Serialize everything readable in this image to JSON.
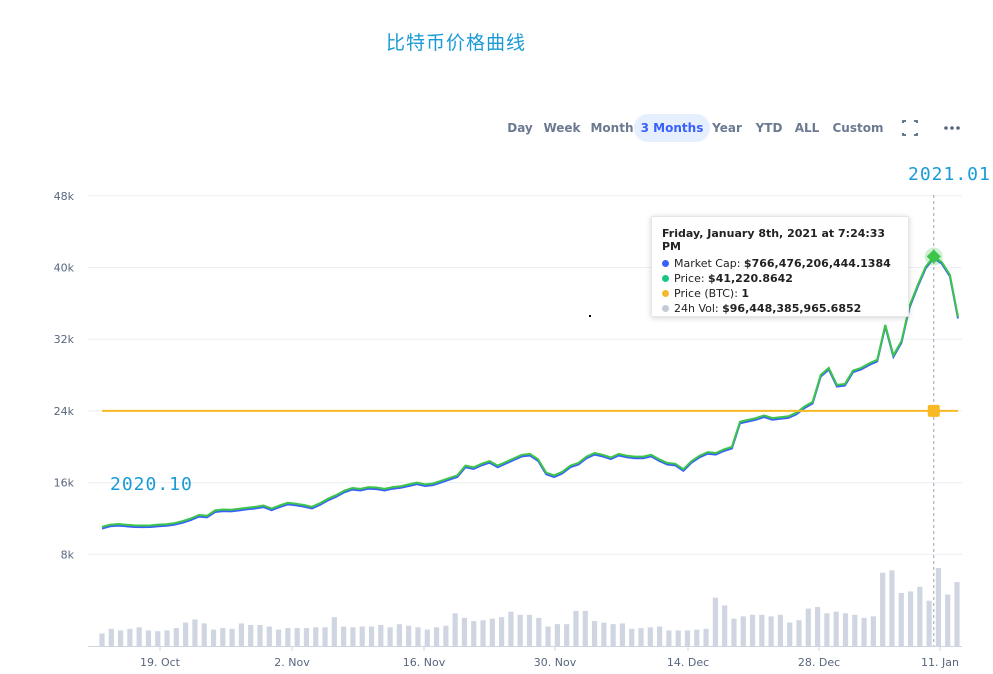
{
  "title": "比特币价格曲线",
  "range_buttons": [
    {
      "label": "Day",
      "active": false
    },
    {
      "label": "Week",
      "active": false
    },
    {
      "label": "Month",
      "active": false
    },
    {
      "label": "3 Months",
      "active": true
    },
    {
      "label": "Year",
      "active": false
    },
    {
      "label": "YTD",
      "active": false
    },
    {
      "label": "ALL",
      "active": false
    },
    {
      "label": "Custom",
      "active": false
    }
  ],
  "icons": {
    "fullscreen": "fullscreen-icon",
    "more": "more-options-icon"
  },
  "annotations": {
    "start": "2020.10",
    "end": "2021.01"
  },
  "tooltip": {
    "header": "Friday, January 8th, 2021 at 7:24:33 PM",
    "rows": [
      {
        "label": "Market Cap:",
        "value": "$766,476,206,444.1384",
        "color": "#3861fb"
      },
      {
        "label": "Price:",
        "value": "$41,220.8642",
        "color": "#16c784"
      },
      {
        "label": "Price (BTC):",
        "value": "1",
        "color": "#f3ba2f"
      },
      {
        "label": "24h Vol:",
        "value": "$96,448,385,965.6852",
        "color": "#c2cad6"
      }
    ]
  },
  "colors": {
    "price": "#3dc44a",
    "market_cap": "#3861fb",
    "price_btc": "#f7b924",
    "volume": "#cfd6e2",
    "grid": "#eceff3"
  },
  "chart_data": {
    "type": "line",
    "x_tick_labels": [
      "19. Oct",
      "2. Nov",
      "16. Nov",
      "30. Nov",
      "14. Dec",
      "28. Dec",
      "11. Jan"
    ],
    "x_start_date": "2020-10-10",
    "y_ticks": [
      8000,
      16000,
      24000,
      32000,
      40000,
      48000
    ],
    "y_tick_labels": [
      "8k",
      "16k",
      "24k",
      "32k",
      "40k",
      "48k"
    ],
    "ylim": [
      0,
      50000
    ],
    "series": [
      {
        "name": "Price",
        "values": [
          11060,
          11300,
          11380,
          11300,
          11230,
          11210,
          11230,
          11310,
          11360,
          11480,
          11700,
          12000,
          12380,
          12300,
          12900,
          13000,
          12970,
          13080,
          13200,
          13300,
          13450,
          13100,
          13450,
          13750,
          13650,
          13500,
          13300,
          13700,
          14200,
          14600,
          15100,
          15400,
          15300,
          15500,
          15450,
          15300,
          15500,
          15600,
          15800,
          16000,
          15800,
          15900,
          16200,
          16500,
          16800,
          17900,
          17700,
          18100,
          18400,
          17900,
          18300,
          18700,
          19100,
          19200,
          18600,
          17100,
          16800,
          17200,
          17900,
          18200,
          18900,
          19300,
          19100,
          18800,
          19200,
          19000,
          18900,
          18900,
          19100,
          18600,
          18200,
          18100,
          17500,
          18400,
          19000,
          19400,
          19300,
          19700,
          20000,
          22800,
          23000,
          23200,
          23500,
          23200,
          23300,
          23400,
          23800,
          24500,
          25000,
          28000,
          28800,
          26900,
          27000,
          28500,
          28800,
          29300,
          29700,
          33600,
          30200,
          31800,
          35700,
          38000,
          40100,
          41200,
          40600,
          39200,
          34500
        ],
        "color": "#3dc44a"
      },
      {
        "name": "Price (BTC)",
        "values": [
          24000,
          24000
        ],
        "color": "#f7b924"
      },
      {
        "name": "24h Vol",
        "values": [
          16,
          22,
          20,
          22,
          24,
          20,
          19,
          20,
          23,
          30,
          34,
          29,
          21,
          23,
          22,
          29,
          27,
          27,
          25,
          21,
          23,
          23,
          23,
          24,
          24,
          37,
          25,
          24,
          25,
          25,
          27,
          24,
          28,
          26,
          24,
          21,
          24,
          26,
          42,
          36,
          32,
          33,
          35,
          37,
          44,
          40,
          40,
          36,
          25,
          28,
          28,
          45,
          45,
          32,
          30,
          28,
          29,
          22,
          23,
          24,
          25,
          20,
          20,
          20,
          21,
          22,
          62,
          52,
          35,
          38,
          40,
          40,
          38,
          40,
          30,
          33,
          48,
          50,
          42,
          44,
          42,
          40,
          36,
          38,
          94,
          97,
          68,
          70,
          76,
          58,
          100,
          66,
          82
        ],
        "color": "#cfd6e2"
      }
    ],
    "highlight": {
      "index": 103,
      "value": 41220.8642
    }
  }
}
